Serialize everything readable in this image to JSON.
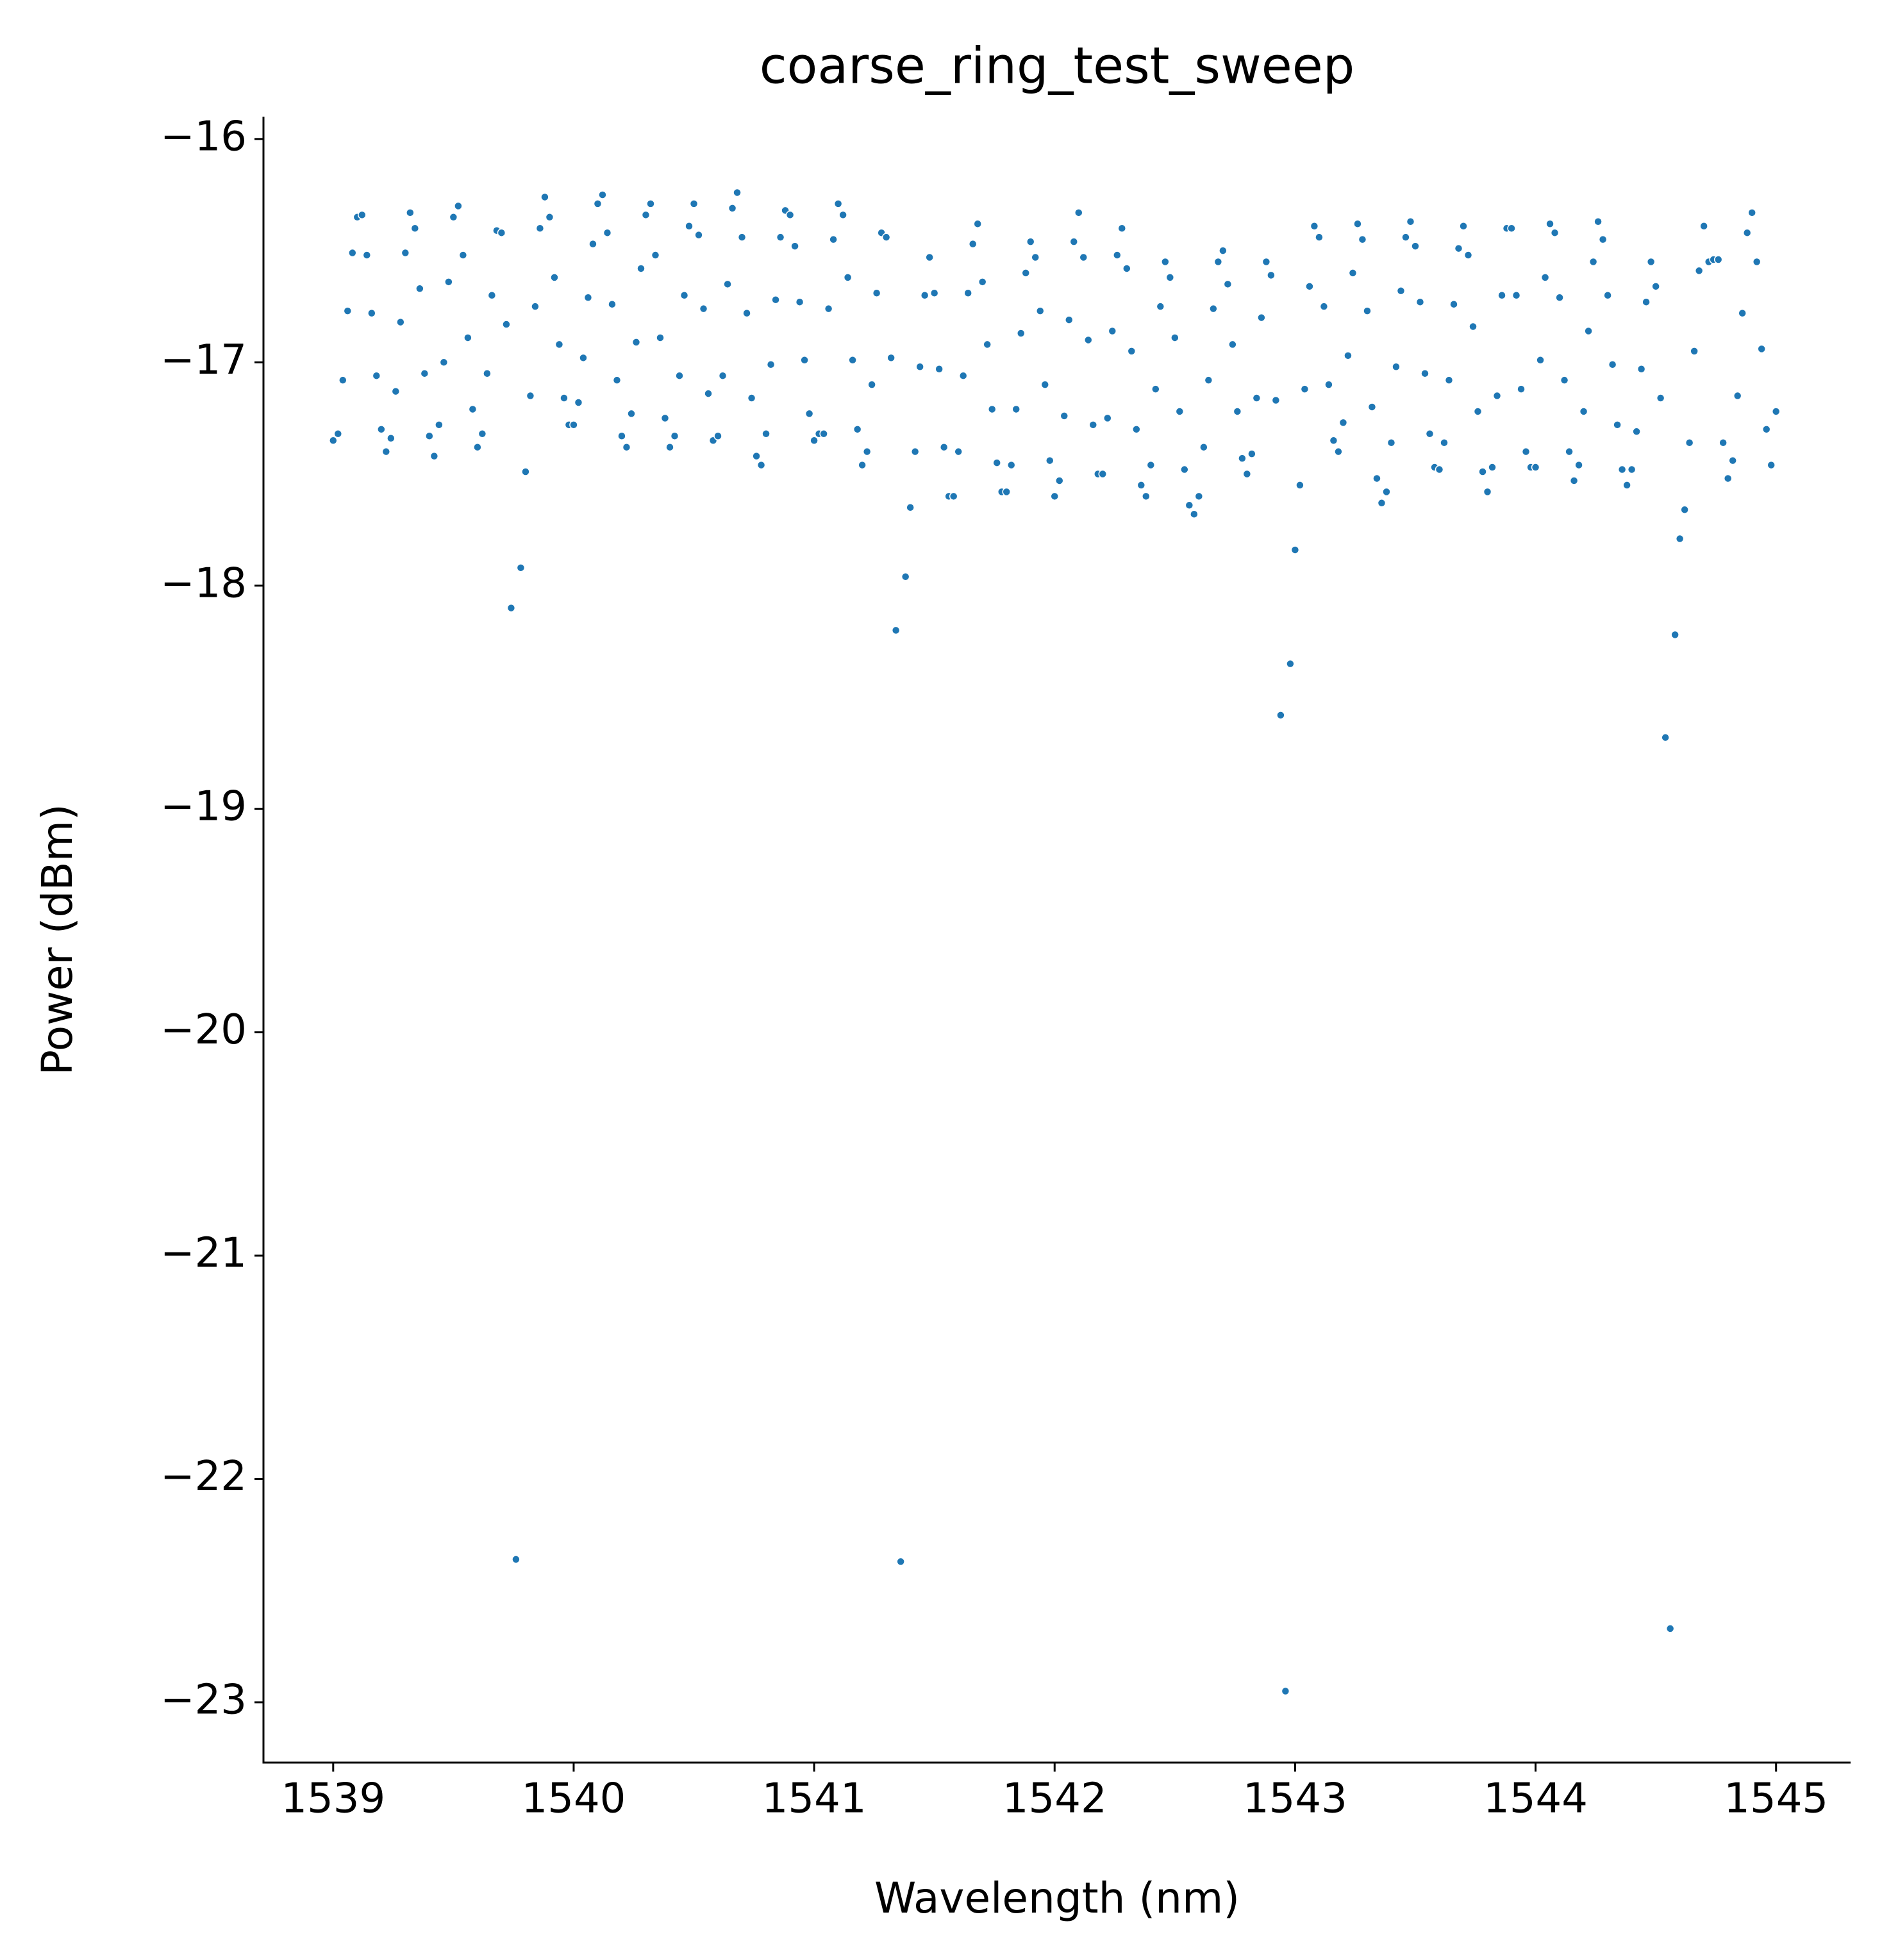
{
  "chart_data": {
    "type": "scatter",
    "title": "coarse_ring_test_sweep",
    "xlabel": "Wavelength (nm)",
    "ylabel": "Power (dBm)",
    "color": "#1f77b4",
    "xlim": [
      1538.71,
      1545.31
    ],
    "ylim": [
      -23.27,
      -15.9
    ],
    "xticks": [
      1539,
      1540,
      1541,
      1542,
      1543,
      1544,
      1545
    ],
    "yticks": [
      {
        "value": -16,
        "label": "−16"
      },
      {
        "value": -17,
        "label": "−17"
      },
      {
        "value": -18,
        "label": "−18"
      },
      {
        "value": -19,
        "label": "−19"
      },
      {
        "value": -20,
        "label": "−20"
      },
      {
        "value": -21,
        "label": "−21"
      },
      {
        "value": -22,
        "label": "−22"
      },
      {
        "value": -23,
        "label": "−23"
      }
    ],
    "x": [
      1539.0,
      1539.02,
      1539.04,
      1539.06,
      1539.08,
      1539.1,
      1539.12,
      1539.14,
      1539.16,
      1539.18,
      1539.2,
      1539.22,
      1539.24,
      1539.26,
      1539.28,
      1539.3,
      1539.32,
      1539.34,
      1539.36,
      1539.38,
      1539.4,
      1539.42,
      1539.44,
      1539.46,
      1539.48,
      1539.5,
      1539.52,
      1539.54,
      1539.56,
      1539.58,
      1539.6,
      1539.62,
      1539.64,
      1539.66,
      1539.68,
      1539.7,
      1539.72,
      1539.74,
      1539.76,
      1539.78,
      1539.8,
      1539.82,
      1539.84,
      1539.86,
      1539.88,
      1539.9,
      1539.92,
      1539.94,
      1539.96,
      1539.98,
      1540.0,
      1540.02,
      1540.04,
      1540.06,
      1540.08,
      1540.1,
      1540.12,
      1540.14,
      1540.16,
      1540.18,
      1540.2,
      1540.22,
      1540.24,
      1540.26,
      1540.28,
      1540.3,
      1540.32,
      1540.34,
      1540.36,
      1540.38,
      1540.4,
      1540.42,
      1540.44,
      1540.46,
      1540.48,
      1540.5,
      1540.52,
      1540.54,
      1540.56,
      1540.58,
      1540.6,
      1540.62,
      1540.64,
      1540.66,
      1540.68,
      1540.7,
      1540.72,
      1540.74,
      1540.76,
      1540.78,
      1540.8,
      1540.82,
      1540.84,
      1540.86,
      1540.88,
      1540.9,
      1540.92,
      1540.94,
      1540.96,
      1540.98,
      1541.0,
      1541.02,
      1541.04,
      1541.06,
      1541.08,
      1541.1,
      1541.12,
      1541.14,
      1541.16,
      1541.18,
      1541.2,
      1541.22,
      1541.24,
      1541.26,
      1541.28,
      1541.3,
      1541.32,
      1541.34,
      1541.36,
      1541.38,
      1541.4,
      1541.42,
      1541.44,
      1541.46,
      1541.48,
      1541.5,
      1541.52,
      1541.54,
      1541.56,
      1541.58,
      1541.6,
      1541.62,
      1541.64,
      1541.66,
      1541.68,
      1541.7,
      1541.72,
      1541.74,
      1541.76,
      1541.78,
      1541.8,
      1541.82,
      1541.84,
      1541.86,
      1541.88,
      1541.9,
      1541.92,
      1541.94,
      1541.96,
      1541.98,
      1542.0,
      1542.02,
      1542.04,
      1542.06,
      1542.08,
      1542.1,
      1542.12,
      1542.14,
      1542.16,
      1542.18,
      1542.2,
      1542.22,
      1542.24,
      1542.26,
      1542.28,
      1542.3,
      1542.32,
      1542.34,
      1542.36,
      1542.38,
      1542.4,
      1542.42,
      1542.44,
      1542.46,
      1542.48,
      1542.5,
      1542.52,
      1542.54,
      1542.56,
      1542.58,
      1542.6,
      1542.62,
      1542.64,
      1542.66,
      1542.68,
      1542.7,
      1542.72,
      1542.74,
      1542.76,
      1542.78,
      1542.8,
      1542.82,
      1542.84,
      1542.86,
      1542.88,
      1542.9,
      1542.92,
      1542.94,
      1542.96,
      1542.98,
      1543.0,
      1543.02,
      1543.04,
      1543.06,
      1543.08,
      1543.1,
      1543.12,
      1543.14,
      1543.16,
      1543.18,
      1543.2,
      1543.22,
      1543.24,
      1543.26,
      1543.28,
      1543.3,
      1543.32,
      1543.34,
      1543.36,
      1543.38,
      1543.4,
      1543.42,
      1543.44,
      1543.46,
      1543.48,
      1543.5,
      1543.52,
      1543.54,
      1543.56,
      1543.58,
      1543.6,
      1543.62,
      1543.64,
      1543.66,
      1543.68,
      1543.7,
      1543.72,
      1543.74,
      1543.76,
      1543.78,
      1543.8,
      1543.82,
      1543.84,
      1543.86,
      1543.88,
      1543.9,
      1543.92,
      1543.94,
      1543.96,
      1543.98,
      1544.0,
      1544.02,
      1544.04,
      1544.06,
      1544.08,
      1544.1,
      1544.12,
      1544.14,
      1544.16,
      1544.18,
      1544.2,
      1544.22,
      1544.24,
      1544.26,
      1544.28,
      1544.3,
      1544.32,
      1544.34,
      1544.36,
      1544.38,
      1544.4,
      1544.42,
      1544.44,
      1544.46,
      1544.48,
      1544.5,
      1544.52,
      1544.54,
      1544.56,
      1544.58,
      1544.6,
      1544.62,
      1544.64,
      1544.66,
      1544.68,
      1544.7,
      1544.72,
      1544.74,
      1544.76,
      1544.78,
      1544.8,
      1544.82,
      1544.84,
      1544.86,
      1544.88,
      1544.9,
      1544.92,
      1544.94,
      1544.96,
      1544.98,
      1545.0
    ],
    "values": [
      -17.35,
      -17.32,
      -17.08,
      -16.77,
      -16.51,
      -16.35,
      -16.34,
      -16.52,
      -16.78,
      -17.06,
      -17.3,
      -17.4,
      -17.34,
      -17.13,
      -16.82,
      -16.51,
      -16.33,
      -16.4,
      -16.67,
      -17.05,
      -17.33,
      -17.42,
      -17.28,
      -17.0,
      -16.64,
      -16.35,
      -16.3,
      -16.52,
      -16.89,
      -17.21,
      -17.38,
      -17.32,
      -17.05,
      -16.7,
      -16.41,
      -16.42,
      -16.83,
      -18.1,
      -22.36,
      -17.92,
      -17.49,
      -17.15,
      -16.75,
      -16.4,
      -16.26,
      -16.35,
      -16.62,
      -16.92,
      -17.16,
      -17.28,
      -17.28,
      -17.18,
      -16.98,
      -16.71,
      -16.47,
      -16.29,
      -16.25,
      -16.42,
      -16.74,
      -17.08,
      -17.33,
      -17.38,
      -17.23,
      -16.91,
      -16.58,
      -16.34,
      -16.29,
      -16.52,
      -16.89,
      -17.25,
      -17.38,
      -17.33,
      -17.06,
      -16.7,
      -16.39,
      -16.29,
      -16.43,
      -16.76,
      -17.14,
      -17.35,
      -17.33,
      -17.06,
      -16.65,
      -16.31,
      -16.24,
      -16.44,
      -16.78,
      -17.16,
      -17.42,
      -17.46,
      -17.32,
      -17.01,
      -16.72,
      -16.44,
      -16.32,
      -16.34,
      -16.48,
      -16.73,
      -16.99,
      -17.23,
      -17.35,
      -17.32,
      -17.32,
      -16.76,
      -16.45,
      -16.29,
      -16.34,
      -16.62,
      -16.99,
      -17.3,
      -17.46,
      -17.4,
      -17.1,
      -16.69,
      -16.42,
      -16.44,
      -16.98,
      -18.2,
      -22.37,
      -17.96,
      -17.65,
      -17.4,
      -17.02,
      -16.7,
      -16.53,
      -16.69,
      -17.03,
      -17.38,
      -17.6,
      -17.6,
      -17.4,
      -17.06,
      -16.69,
      -16.47,
      -16.38,
      -16.64,
      -16.92,
      -17.21,
      -17.45,
      -17.58,
      -17.58,
      -17.46,
      -17.21,
      -16.87,
      -16.6,
      -16.46,
      -16.53,
      -16.77,
      -17.1,
      -17.44,
      -17.6,
      -17.53,
      -17.24,
      -16.81,
      -16.46,
      -16.33,
      -16.53,
      -16.9,
      -17.28,
      -17.5,
      -17.5,
      -17.25,
      -16.86,
      -16.52,
      -16.4,
      -16.58,
      -16.95,
      -17.3,
      -17.55,
      -17.6,
      -17.46,
      -17.12,
      -16.75,
      -16.55,
      -16.62,
      -16.89,
      -17.22,
      -17.48,
      -17.64,
      -17.68,
      -17.6,
      -17.38,
      -17.08,
      -16.76,
      -16.55,
      -16.5,
      -16.65,
      -16.92,
      -17.22,
      -17.43,
      -17.5,
      -17.41,
      -17.16,
      -16.8,
      -16.55,
      -16.61,
      -17.17,
      -18.58,
      -22.95,
      -18.35,
      -17.84,
      -17.55,
      -17.12,
      -16.66,
      -16.39,
      -16.44,
      -16.75,
      -17.1,
      -17.35,
      -17.4,
      -17.27,
      -16.97,
      -16.6,
      -16.38,
      -16.45,
      -16.77,
      -17.2,
      -17.52,
      -17.63,
      -17.58,
      -17.36,
      -17.02,
      -16.68,
      -16.44,
      -16.37,
      -16.48,
      -16.73,
      -17.05,
      -17.32,
      -17.47,
      -17.48,
      -17.36,
      -17.08,
      -16.74,
      -16.49,
      -16.39,
      -16.52,
      -16.84,
      -17.22,
      -17.49,
      -17.58,
      -17.47,
      -17.15,
      -16.7,
      -16.4,
      -16.4,
      -16.7,
      -17.12,
      -17.4,
      -17.47,
      -17.47,
      -16.99,
      -16.62,
      -16.38,
      -16.42,
      -16.71,
      -17.08,
      -17.4,
      -17.53,
      -17.46,
      -17.22,
      -16.86,
      -16.55,
      -16.37,
      -16.45,
      -16.7,
      -17.01,
      -17.28,
      -17.48,
      -17.55,
      -17.48,
      -17.31,
      -17.03,
      -16.73,
      -16.55,
      -16.66,
      -17.16,
      -18.68,
      -22.67,
      -18.22,
      -17.79,
      -17.66,
      -17.36,
      -16.95,
      -16.59,
      -16.39,
      -16.55,
      -16.54,
      -16.54,
      -17.36,
      -17.52,
      -17.44,
      -17.15,
      -16.78,
      -16.42,
      -16.33,
      -16.55,
      -16.94,
      -17.3,
      -17.46,
      -17.22
    ]
  }
}
